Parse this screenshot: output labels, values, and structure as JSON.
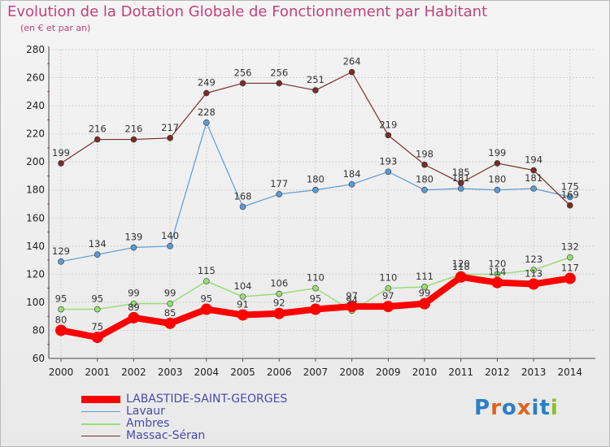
{
  "header": {
    "title": "Evolution de la Dotation Globale de Fonctionnement par Habitant",
    "subtitle": "(en € et par an)"
  },
  "brand": {
    "logo_text": "Proxiti",
    "letter_colors": [
      "#2a7fc8",
      "#e0641a",
      "#2a7fc8",
      "#e0641a",
      "#2a7fc8",
      "#2a7fc8",
      "#8bbf2a"
    ]
  },
  "chart_data": {
    "type": "line",
    "title": "Evolution de la Dotation Globale de Fonctionnement par Habitant",
    "subtitle": "(en € et par an)",
    "x": [
      "2000",
      "2001",
      "2002",
      "2003",
      "2004",
      "2005",
      "2006",
      "2007",
      "2008",
      "2009",
      "2010",
      "2011",
      "2012",
      "2013",
      "2014"
    ],
    "ylim": [
      60,
      280
    ],
    "yticks": [
      60,
      80,
      100,
      120,
      140,
      160,
      180,
      200,
      220,
      240,
      260,
      280
    ],
    "grid": true,
    "legend_position": "bottom-left",
    "series": [
      {
        "name": "LABASTIDE-SAINT-GEORGES",
        "color": "#ff0000",
        "values": [
          80,
          75,
          89,
          85,
          95,
          91,
          92,
          95,
          97,
          97,
          99,
          118,
          114,
          113,
          117
        ]
      },
      {
        "name": "Lavaur",
        "color": "#5b9bd5",
        "values": [
          129,
          134,
          139,
          140,
          228,
          168,
          177,
          180,
          184,
          193,
          180,
          181,
          180,
          181,
          175
        ]
      },
      {
        "name": "Ambres",
        "color": "#99dd77",
        "values": [
          95,
          95,
          99,
          99,
          115,
          104,
          106,
          110,
          94,
          110,
          111,
          120,
          120,
          123,
          132
        ]
      },
      {
        "name": "Massac-Séran",
        "color": "#7a2b2b",
        "values": [
          199,
          216,
          216,
          217,
          249,
          256,
          256,
          251,
          264,
          219,
          198,
          185,
          199,
          194,
          169
        ]
      }
    ]
  }
}
